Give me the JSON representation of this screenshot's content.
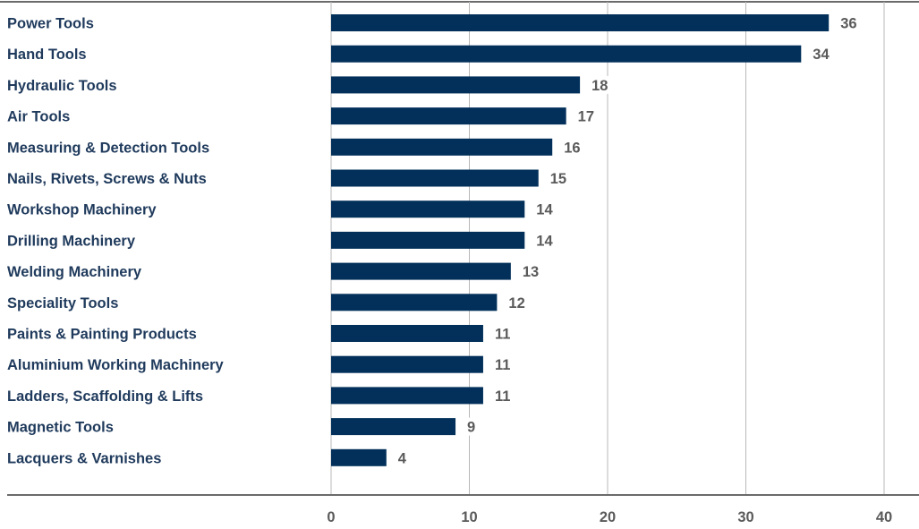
{
  "chart_data": {
    "type": "bar",
    "orientation": "horizontal",
    "categories": [
      "Power Tools",
      "Hand Tools",
      "Hydraulic Tools",
      "Air Tools",
      "Measuring & Detection Tools",
      "Nails, Rivets, Screws & Nuts",
      "Workshop Machinery",
      "Drilling Machinery",
      "Welding Machinery",
      "Speciality Tools",
      "Paints & Painting Products",
      "Aluminium Working Machinery",
      "Ladders, Scaffolding & Lifts",
      "Magnetic Tools",
      "Lacquers & Varnishes"
    ],
    "values": [
      36,
      34,
      18,
      17,
      16,
      15,
      14,
      14,
      13,
      12,
      11,
      11,
      11,
      9,
      4
    ],
    "x_ticks": [
      0,
      10,
      20,
      30,
      40
    ],
    "xlim": [
      0,
      42
    ],
    "grid": true,
    "data_labels": true,
    "legend": "none",
    "colors": {
      "bar": "#02305a",
      "label_text": "#1f3a5c",
      "value_text": "#5a5a5a",
      "grid": "#b8b8b8",
      "axis_rule": "#6b6b6b"
    }
  }
}
